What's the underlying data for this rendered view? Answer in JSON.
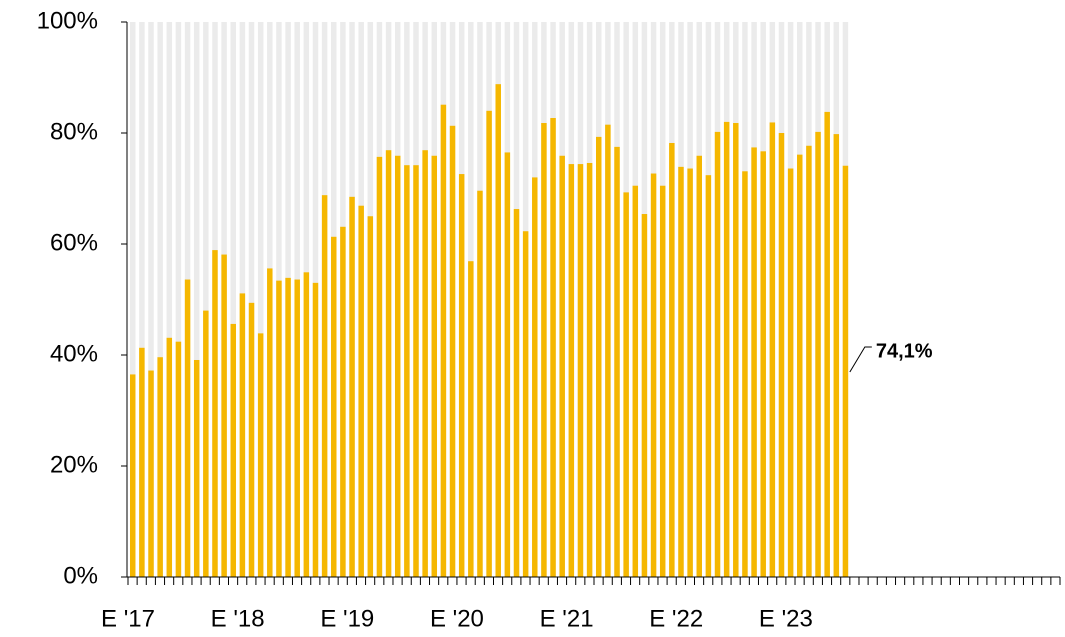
{
  "chart_data": {
    "type": "bar",
    "categories": [
      "E '17",
      null,
      null,
      null,
      null,
      null,
      null,
      null,
      null,
      null,
      null,
      null,
      "E '18",
      null,
      null,
      null,
      null,
      null,
      null,
      null,
      null,
      null,
      null,
      null,
      "E '19",
      null,
      null,
      null,
      null,
      null,
      null,
      null,
      null,
      null,
      null,
      null,
      "E '20",
      null,
      null,
      null,
      null,
      null,
      null,
      null,
      null,
      null,
      null,
      null,
      "E '21",
      null,
      null,
      null,
      null,
      null,
      null,
      null,
      null,
      null,
      null,
      null,
      "E '22",
      null,
      null,
      null,
      null,
      null,
      null,
      null,
      null,
      null,
      null,
      null,
      "E '23",
      null,
      null,
      null,
      null,
      null,
      null,
      null,
      null,
      null,
      null,
      null,
      null,
      null,
      null,
      null,
      null,
      null,
      null,
      null,
      null,
      null,
      null,
      null,
      null,
      null,
      null,
      null,
      null,
      null
    ],
    "values": [
      36.5,
      41.3,
      37.2,
      39.6,
      43.1,
      42.4,
      53.6,
      39.1,
      48,
      58.9,
      58.1,
      45.6,
      51.1,
      49.4,
      43.9,
      55.6,
      53.4,
      53.9,
      53.6,
      54.9,
      53,
      68.8,
      61.3,
      63.1,
      68.5,
      66.9,
      65,
      75.7,
      76.9,
      75.9,
      74.2,
      74.2,
      76.9,
      75.9,
      85.1,
      81.3,
      72.6,
      56.9,
      69.6,
      84,
      88.8,
      76.5,
      66.3,
      62.3,
      72,
      81.8,
      82.7,
      75.9,
      74.4,
      74.4,
      74.6,
      79.3,
      81.5,
      77.5,
      69.3,
      70.5,
      65.4,
      72.7,
      70.5,
      78.2,
      73.9,
      73.6,
      75.9,
      72.4,
      80.2,
      82,
      81.8,
      73.1,
      77.4,
      76.7,
      81.9,
      80,
      73.6,
      76.1,
      77.7,
      80.2,
      83.8,
      79.8,
      74.1,
      null,
      null,
      null,
      null,
      null,
      null,
      null,
      null,
      null,
      null,
      null,
      null,
      null,
      null,
      null,
      null,
      null,
      null,
      null,
      null,
      null,
      null,
      null
    ],
    "value_labels": [
      null,
      null,
      null,
      null,
      null,
      null,
      null,
      null,
      null,
      null,
      null,
      null,
      null,
      null,
      null,
      null,
      null,
      null,
      null,
      null,
      null,
      null,
      null,
      null,
      null,
      null,
      null,
      null,
      null,
      null,
      null,
      null,
      null,
      null,
      null,
      null,
      null,
      null,
      null,
      null,
      null,
      null,
      null,
      null,
      null,
      null,
      null,
      null,
      null,
      null,
      null,
      null,
      null,
      null,
      null,
      null,
      null,
      null,
      null,
      null,
      null,
      null,
      null,
      null,
      null,
      null,
      null,
      null,
      null,
      null,
      null,
      null,
      null,
      null,
      null,
      null,
      null,
      null,
      "74,1%",
      null,
      null,
      null,
      null,
      null,
      null,
      null,
      null,
      null,
      null,
      null,
      null,
      null,
      null,
      null,
      null,
      null,
      null,
      null,
      null,
      null,
      null,
      null
    ],
    "color": "#f5b700",
    "background_color": "#ebebeb",
    "ylim": [
      0,
      100
    ],
    "yticks": [
      {
        "value": 0,
        "label": "0%"
      },
      {
        "value": 20,
        "label": "20%"
      },
      {
        "value": 40,
        "label": "40%"
      },
      {
        "value": 60,
        "label": "60%"
      },
      {
        "value": 80,
        "label": "80%"
      },
      {
        "value": 100,
        "label": "100%"
      }
    ]
  }
}
